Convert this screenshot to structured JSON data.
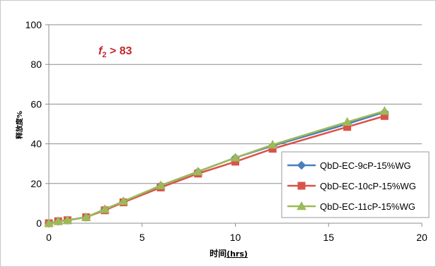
{
  "chart_data": {
    "type": "line",
    "title": "",
    "xlabel": "时间",
    "xlabel_unit": "(hrs)",
    "ylabel": "释放度%",
    "xlim": [
      0,
      20
    ],
    "ylim": [
      0,
      100
    ],
    "xticks": [
      0,
      5,
      10,
      15,
      20
    ],
    "yticks": [
      0,
      20,
      40,
      60,
      80,
      100
    ],
    "grid": "horizontal",
    "legend_position": "bottom-right",
    "annotation": {
      "f_symbol": "f",
      "f_subscript": "2",
      "rest": " > 83",
      "color": "#c0282d"
    },
    "series": [
      {
        "name": "QbD-EC-9cP-15%WG",
        "color": "#4a7ebb",
        "marker": "diamond",
        "x": [
          0,
          0.5,
          1,
          2,
          3,
          4,
          6,
          8,
          10,
          12,
          16,
          18
        ],
        "y": [
          0,
          1,
          1.5,
          3,
          7,
          11,
          19,
          26,
          33,
          39,
          50,
          56
        ]
      },
      {
        "name": "QbD-EC-10cP-15%WG",
        "color": "#d9534a",
        "marker": "square",
        "x": [
          0,
          0.5,
          1,
          2,
          3,
          4,
          6,
          8,
          10,
          12,
          16,
          18
        ],
        "y": [
          0,
          1,
          1.5,
          3,
          6.5,
          10.5,
          18,
          25,
          31,
          37.5,
          48.5,
          54
        ]
      },
      {
        "name": "QbD-EC-11cP-15%WG",
        "color": "#9bbb59",
        "marker": "triangle",
        "x": [
          0,
          0.5,
          1,
          2,
          3,
          4,
          6,
          8,
          10,
          12,
          16,
          18
        ],
        "y": [
          0,
          1,
          1.5,
          3,
          7,
          11,
          19,
          26,
          33,
          39.5,
          51,
          56.5
        ]
      }
    ]
  }
}
